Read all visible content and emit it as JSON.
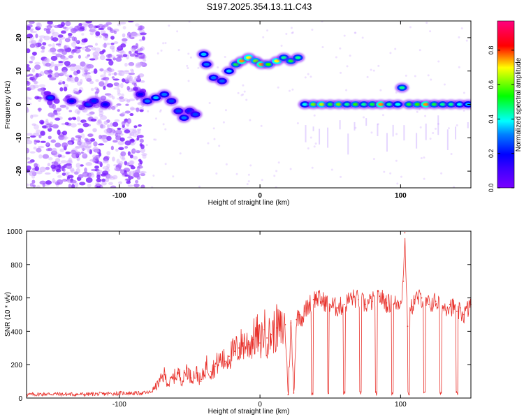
{
  "page_title": "S197.2025.354.13.11.C43",
  "chart_data": [
    {
      "type": "heatmap",
      "title": "S197.2025.354.13.11.C43",
      "xlabel": "Height of straight line (km)",
      "ylabel": "Frequency (Hz)",
      "xlim": [
        -166,
        150
      ],
      "ylim": [
        -25,
        25
      ],
      "x_ticks": [
        -100,
        0,
        100
      ],
      "y_ticks": [
        -20,
        -10,
        0,
        10,
        20
      ],
      "grid": false,
      "colorbar": {
        "label": "Normalized spectral amplitude",
        "range": [
          0,
          0.97
        ],
        "ticks": [
          0.0,
          0.2,
          0.4,
          0.6,
          0.8
        ],
        "colormap": [
          "#7a00ff",
          "#0000ff",
          "#00ffff",
          "#00ff00",
          "#ffff00",
          "#ff0000",
          "#ff0080"
        ]
      },
      "blobs": [
        {
          "x": -149,
          "f": 2,
          "a": 0.25
        },
        {
          "x": -134,
          "f": 1,
          "a": 0.2
        },
        {
          "x": -122,
          "f": 0,
          "a": 0.25
        },
        {
          "x": -118,
          "f": 1,
          "a": 0.22
        },
        {
          "x": -110,
          "f": 0,
          "a": 0.2
        },
        {
          "x": -85,
          "f": 3,
          "a": 0.18
        },
        {
          "x": -80,
          "f": 1,
          "a": 0.3
        },
        {
          "x": -74,
          "f": 2,
          "a": 0.35
        },
        {
          "x": -68,
          "f": 3,
          "a": 0.3
        },
        {
          "x": -63,
          "f": 1,
          "a": 0.25
        },
        {
          "x": -58,
          "f": -2,
          "a": 0.25
        },
        {
          "x": -54,
          "f": -4,
          "a": 0.3
        },
        {
          "x": -50,
          "f": -2,
          "a": 0.22
        },
        {
          "x": -46,
          "f": -3,
          "a": 0.25
        },
        {
          "x": -40,
          "f": 15,
          "a": 0.35
        },
        {
          "x": -38,
          "f": 12,
          "a": 0.3
        },
        {
          "x": -33,
          "f": 8,
          "a": 0.3
        },
        {
          "x": -27,
          "f": 7,
          "a": 0.28
        },
        {
          "x": -22,
          "f": 10,
          "a": 0.35
        },
        {
          "x": -17,
          "f": 12,
          "a": 0.5
        },
        {
          "x": -13,
          "f": 13,
          "a": 0.75
        },
        {
          "x": -8,
          "f": 14,
          "a": 0.7
        },
        {
          "x": -3,
          "f": 13,
          "a": 0.6
        },
        {
          "x": 1,
          "f": 12,
          "a": 0.75
        },
        {
          "x": 6,
          "f": 12,
          "a": 0.55
        },
        {
          "x": 12,
          "f": 13,
          "a": 0.7
        },
        {
          "x": 17,
          "f": 14,
          "a": 0.45
        },
        {
          "x": 22,
          "f": 13,
          "a": 0.5
        },
        {
          "x": 27,
          "f": 14,
          "a": 0.45
        },
        {
          "x": 32,
          "f": 0,
          "a": 0.4
        },
        {
          "x": 38,
          "f": 0,
          "a": 0.6
        },
        {
          "x": 44,
          "f": 0,
          "a": 0.65
        },
        {
          "x": 50,
          "f": 0,
          "a": 0.5
        },
        {
          "x": 56,
          "f": 0,
          "a": 0.6
        },
        {
          "x": 62,
          "f": 0,
          "a": 0.45
        },
        {
          "x": 68,
          "f": 0,
          "a": 0.55
        },
        {
          "x": 74,
          "f": 0,
          "a": 0.45
        },
        {
          "x": 80,
          "f": 0,
          "a": 0.5
        },
        {
          "x": 86,
          "f": 0,
          "a": 0.75
        },
        {
          "x": 92,
          "f": 0,
          "a": 0.45
        },
        {
          "x": 98,
          "f": 0,
          "a": 0.4
        },
        {
          "x": 101,
          "f": 5,
          "a": 0.45
        },
        {
          "x": 106,
          "f": 0,
          "a": 0.5
        },
        {
          "x": 112,
          "f": 0,
          "a": 0.55
        },
        {
          "x": 118,
          "f": 0,
          "a": 0.75
        },
        {
          "x": 124,
          "f": 0,
          "a": 0.5
        },
        {
          "x": 130,
          "f": 0,
          "a": 0.45
        },
        {
          "x": 136,
          "f": 0,
          "a": 0.45
        },
        {
          "x": 142,
          "f": 0,
          "a": 0.4
        },
        {
          "x": 148,
          "f": 0,
          "a": 0.35
        }
      ]
    },
    {
      "type": "line",
      "xlabel": "Height of straight line (km)",
      "ylabel": "SNR (10 * v/v)",
      "xlim": [
        -166,
        150
      ],
      "ylim": [
        0,
        1000
      ],
      "x_ticks": [
        -100,
        0,
        100
      ],
      "y_ticks": [
        0,
        200,
        400,
        600,
        800,
        1000
      ],
      "grid": false,
      "color": "#e8302a",
      "x": [
        -166,
        -150,
        -130,
        -110,
        -95,
        -85,
        -78,
        -75,
        -72,
        -68,
        -65,
        -62,
        -58,
        -55,
        -52,
        -49,
        -45,
        -42,
        -38,
        -35,
        -32,
        -28,
        -25,
        -22,
        -18,
        -15,
        -12,
        -8,
        -5,
        -2,
        0,
        3,
        5,
        8,
        12,
        15,
        18,
        20,
        22,
        24,
        26,
        28,
        30,
        32,
        35,
        38,
        40,
        45,
        50,
        55,
        60,
        65,
        70,
        75,
        80,
        85,
        90,
        95,
        100,
        102,
        103,
        105,
        108,
        110,
        115,
        120,
        125,
        130,
        135,
        140,
        145,
        150
      ],
      "y": [
        20,
        25,
        22,
        25,
        30,
        28,
        35,
        60,
        90,
        140,
        80,
        120,
        150,
        100,
        180,
        120,
        150,
        100,
        200,
        160,
        190,
        230,
        220,
        250,
        280,
        300,
        330,
        320,
        350,
        380,
        330,
        410,
        360,
        380,
        420,
        400,
        440,
        20,
        450,
        30,
        470,
        500,
        480,
        520,
        560,
        590,
        600,
        580,
        560,
        540,
        560,
        600,
        590,
        560,
        580,
        610,
        570,
        560,
        580,
        700,
        990,
        430,
        550,
        590,
        600,
        560,
        580,
        540,
        560,
        520,
        500,
        560
      ]
    }
  ]
}
